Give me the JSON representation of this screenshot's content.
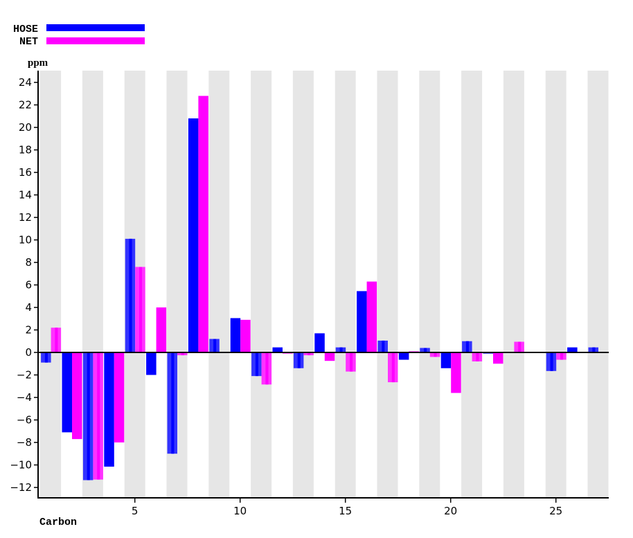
{
  "legend": {
    "items": [
      {
        "label": "HOSE",
        "color": "#0000ff"
      },
      {
        "label": "NET",
        "color": "#ff00ff"
      }
    ]
  },
  "axes": {
    "y_unit": "ppm",
    "x_title": "Carbon"
  },
  "colors": {
    "hose": "#0000ff",
    "hose_light": "#3333ff",
    "net": "#ff00ff",
    "net_light": "#ff33ff",
    "band": "#e6e6e6",
    "axis": "#000000"
  },
  "chart_data": {
    "type": "bar",
    "title": "",
    "xlabel": "Carbon",
    "ylabel": "ppm",
    "categories": [
      1,
      2,
      3,
      4,
      5,
      6,
      7,
      8,
      9,
      10,
      11,
      12,
      13,
      14,
      15,
      16,
      17,
      18,
      19,
      20,
      21,
      22,
      23,
      24,
      25,
      26,
      27
    ],
    "series": [
      {
        "name": "HOSE",
        "color": "#0000ff",
        "values": [
          -0.9,
          -7.1,
          -11.35,
          -10.15,
          10.1,
          -2.0,
          -9.0,
          20.8,
          1.2,
          3.05,
          -2.1,
          0.45,
          -1.4,
          1.7,
          0.45,
          5.45,
          1.05,
          -0.65,
          0.4,
          -1.4,
          1.0,
          -0.1,
          0,
          0,
          -1.65,
          0.45,
          0.45
        ]
      },
      {
        "name": "NET",
        "color": "#ff00ff",
        "values": [
          2.2,
          -7.7,
          -11.3,
          -8.0,
          7.6,
          4.0,
          -0.25,
          22.8,
          -0.05,
          2.9,
          -2.85,
          -0.1,
          -0.25,
          -0.75,
          -1.7,
          6.3,
          -2.65,
          0.1,
          -0.4,
          -3.6,
          -0.8,
          -1.0,
          0.95,
          0,
          -0.65,
          -0.05,
          -0.05
        ]
      }
    ],
    "x_ticks": [
      5,
      10,
      15,
      20,
      25
    ],
    "y_ticks": [
      -12,
      -10,
      -8,
      -6,
      -4,
      -2,
      0,
      2,
      4,
      6,
      8,
      10,
      12,
      14,
      16,
      18,
      20,
      22,
      24
    ],
    "ylim": [
      -13,
      25
    ],
    "xlim": [
      0.5,
      27.5
    ],
    "grid": false,
    "alternating_bands": "odd carbons shaded gray",
    "legend_position": "top-left"
  }
}
